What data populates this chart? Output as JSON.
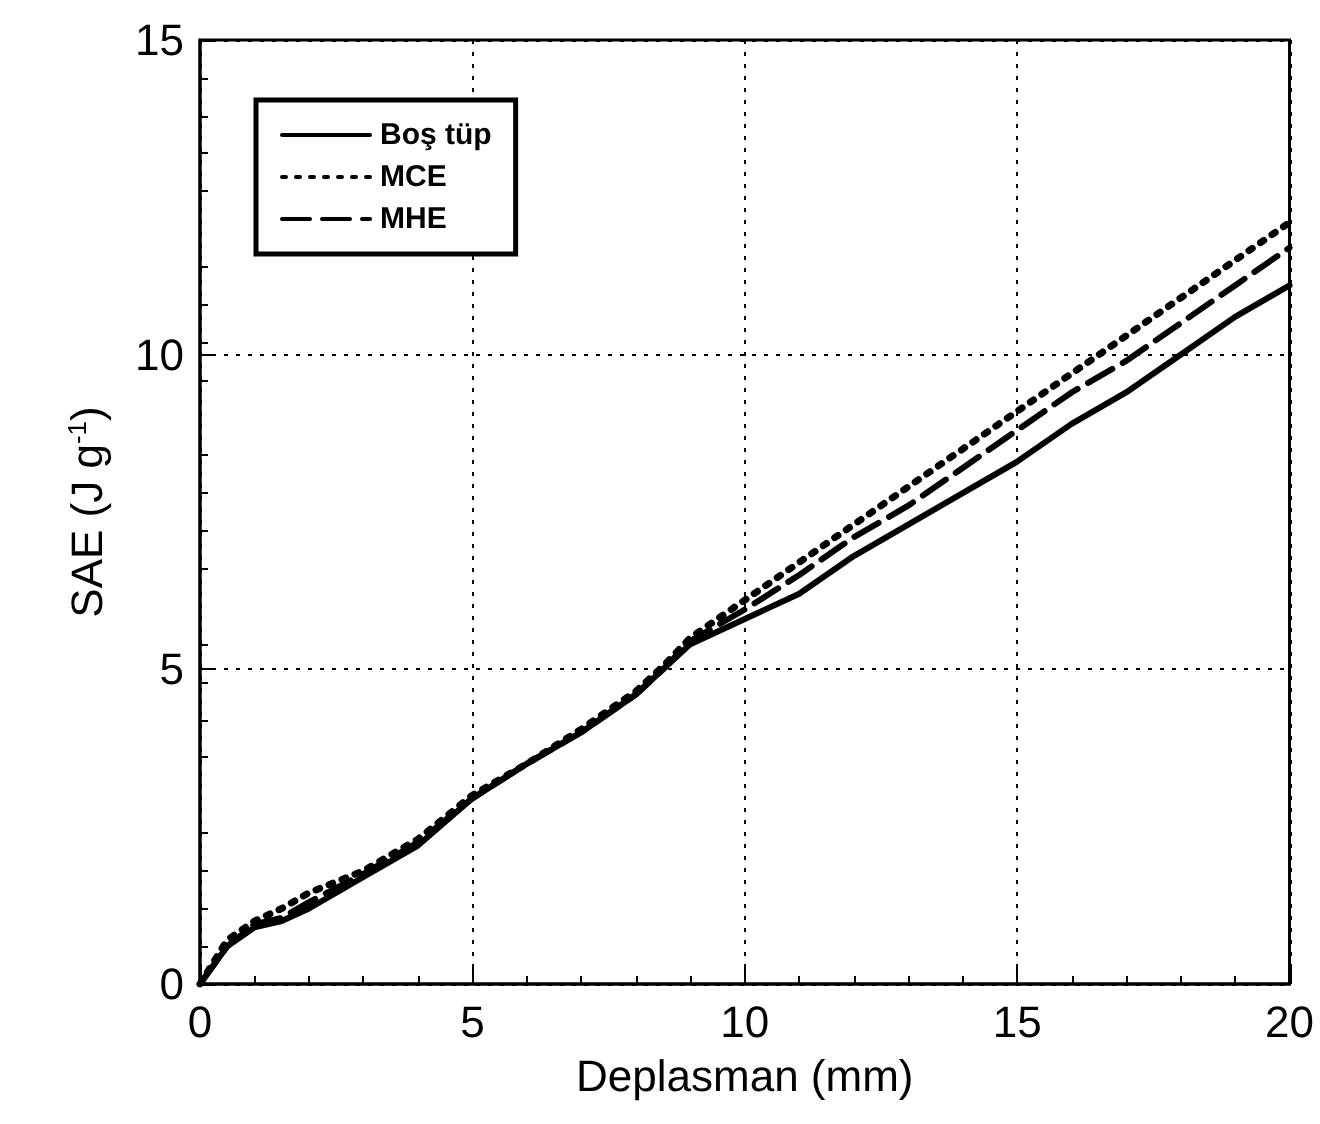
{
  "chart_data": {
    "type": "line",
    "xlabel": "Deplasman (mm)",
    "ylabel": "SAE (J g$^{-1}$)",
    "xlim": [
      0,
      20
    ],
    "xticks": [
      0,
      5,
      10,
      15,
      20
    ],
    "ylim": [
      0,
      15
    ],
    "yticks": [
      0,
      5,
      10,
      15
    ],
    "grid": true,
    "legend": "top left",
    "marker": "none",
    "x": [
      0,
      0.5,
      1,
      1.5,
      2,
      3,
      4,
      5,
      6,
      7,
      8,
      8.5,
      9,
      10,
      11,
      12,
      13,
      14,
      15,
      16,
      17,
      18,
      19,
      20
    ],
    "series": [
      {
        "name": "Boş tüp",
        "color": "#000000",
        "line_style": "solid",
        "values": [
          0,
          0.6,
          0.9,
          1.0,
          1.2,
          1.7,
          2.2,
          2.95,
          3.5,
          4.0,
          4.6,
          5.0,
          5.4,
          5.8,
          6.2,
          6.8,
          7.3,
          7.8,
          8.3,
          8.9,
          9.4,
          10.0,
          10.6,
          11.1
        ]
      },
      {
        "name": "MCE",
        "color": "#000000",
        "line_style": "dotted",
        "values": [
          0,
          0.7,
          1.0,
          1.2,
          1.45,
          1.8,
          2.3,
          3.0,
          3.5,
          4.05,
          4.65,
          5.05,
          5.5,
          6.1,
          6.7,
          7.3,
          7.9,
          8.5,
          9.1,
          9.7,
          10.3,
          10.9,
          11.5,
          12.1
        ]
      },
      {
        "name": "MHE",
        "color": "#000000",
        "line_style": "dashed",
        "values": [
          0,
          0.6,
          0.95,
          1.05,
          1.3,
          1.75,
          2.25,
          2.95,
          3.5,
          4.0,
          4.6,
          5.0,
          5.45,
          5.95,
          6.5,
          7.1,
          7.6,
          8.2,
          8.8,
          9.4,
          9.9,
          10.5,
          11.1,
          11.7
        ]
      }
    ]
  }
}
